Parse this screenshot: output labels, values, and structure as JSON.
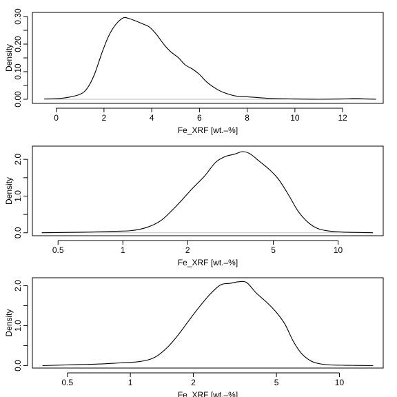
{
  "chart_data": [
    {
      "type": "line",
      "xscale": "linear",
      "xlabel": "Fe_XRF [wt.–%]",
      "ylabel": "Density",
      "xlim": [
        -1.0,
        13.7
      ],
      "ylim": [
        -0.015,
        0.315
      ],
      "xticks": [
        0,
        2,
        4,
        6,
        8,
        10,
        12
      ],
      "xticklabels": [
        "0",
        "2",
        "4",
        "6",
        "8",
        "10",
        "12"
      ],
      "yticks": [
        0.0,
        0.05,
        0.1,
        0.15,
        0.2,
        0.25,
        0.3
      ],
      "yticklabels": [
        "0.00",
        "",
        "0.10",
        "",
        "0.20",
        "",
        "0.30"
      ],
      "baseline": true,
      "series": [
        {
          "x": [
            -0.5,
            0.0,
            0.5,
            1.0,
            1.3,
            1.6,
            1.9,
            2.2,
            2.5,
            2.8,
            3.0,
            3.3,
            3.6,
            3.9,
            4.2,
            4.5,
            4.8,
            5.1,
            5.4,
            5.7,
            6.0,
            6.3,
            6.7,
            7.0,
            7.5,
            8.0,
            9.0,
            10.0,
            11.0,
            12.0,
            12.5,
            13.0,
            13.4
          ],
          "y": [
            0.001,
            0.002,
            0.007,
            0.018,
            0.04,
            0.09,
            0.165,
            0.23,
            0.272,
            0.295,
            0.294,
            0.285,
            0.274,
            0.262,
            0.235,
            0.2,
            0.172,
            0.152,
            0.125,
            0.11,
            0.09,
            0.063,
            0.038,
            0.025,
            0.012,
            0.009,
            0.003,
            0.001,
            0.0,
            0.001,
            0.003,
            0.001,
            0.0
          ]
        }
      ]
    },
    {
      "type": "line",
      "xscale": "log",
      "xlabel": "Fe_XRF [wt.–%]",
      "ylabel": "Density",
      "xlim": [
        0.38,
        16.2
      ],
      "ylim": [
        -0.08,
        2.36
      ],
      "xticks": [
        0.5,
        1,
        2,
        5,
        10
      ],
      "xticklabels": [
        "0.5",
        "1",
        "2",
        "5",
        "10"
      ],
      "yticks": [
        0.0,
        0.5,
        1.0,
        1.5,
        2.0
      ],
      "yticklabels": [
        "0.0",
        "",
        "1.0",
        "",
        "2.0"
      ],
      "baseline": true,
      "series": [
        {
          "x": [
            0.42,
            0.55,
            0.7,
            0.9,
            1.1,
            1.3,
            1.5,
            1.7,
            1.9,
            2.1,
            2.4,
            2.7,
            3.0,
            3.3,
            3.6,
            3.9,
            4.3,
            4.8,
            5.3,
            5.9,
            6.5,
            7.2,
            8.0,
            9.0,
            10.5,
            12.0,
            14.5
          ],
          "y": [
            0.0,
            0.01,
            0.02,
            0.04,
            0.06,
            0.15,
            0.33,
            0.62,
            0.92,
            1.2,
            1.55,
            1.92,
            2.08,
            2.14,
            2.21,
            2.15,
            1.95,
            1.72,
            1.45,
            1.02,
            0.6,
            0.3,
            0.12,
            0.05,
            0.02,
            0.01,
            0.0
          ]
        }
      ]
    },
    {
      "type": "line",
      "xscale": "log",
      "xlabel": "Fe_XRF [wt.–%]",
      "ylabel": "Density",
      "xlim": [
        0.34,
        16.2
      ],
      "ylim": [
        -0.06,
        2.2
      ],
      "xticks": [
        0.5,
        1,
        2,
        5,
        10
      ],
      "xticklabels": [
        "0.5",
        "1",
        "2",
        "5",
        "10"
      ],
      "yticks": [
        0.0,
        0.5,
        1.0,
        1.5,
        2.0
      ],
      "yticklabels": [
        "0.0",
        "",
        "1.0",
        "",
        "2.0"
      ],
      "baseline": false,
      "series": [
        {
          "x": [
            0.38,
            0.5,
            0.7,
            0.9,
            1.1,
            1.3,
            1.5,
            1.7,
            1.9,
            2.1,
            2.4,
            2.7,
            3.0,
            3.3,
            3.6,
            4.0,
            4.5,
            5.0,
            5.5,
            6.0,
            6.6,
            7.3,
            8.0,
            9.0,
            10.5,
            12.0,
            14.5
          ],
          "y": [
            0.0,
            0.02,
            0.04,
            0.07,
            0.1,
            0.2,
            0.45,
            0.78,
            1.12,
            1.42,
            1.78,
            2.02,
            2.06,
            2.1,
            2.08,
            1.82,
            1.58,
            1.33,
            1.03,
            0.62,
            0.3,
            0.12,
            0.05,
            0.02,
            0.01,
            0.005,
            0.0
          ]
        }
      ]
    }
  ]
}
